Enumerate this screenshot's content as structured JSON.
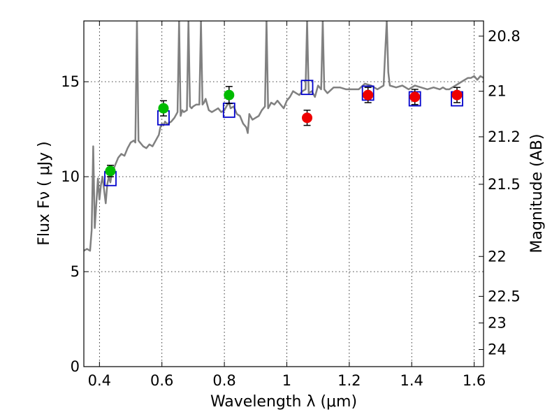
{
  "chart_data": {
    "type": "scatter",
    "title": "",
    "xlabel": "Wavelength  λ (μm)",
    "ylabel": "Flux  Fν  ( μJy )",
    "ylabel_right": "Magnitude (AB)",
    "xlim": [
      0.35,
      1.63
    ],
    "ylim": [
      0,
      18.2
    ],
    "grid": true,
    "x_ticks": [
      0.4,
      0.6,
      0.8,
      1.0,
      1.2,
      1.4,
      1.6
    ],
    "x_tick_labels": [
      "0.4",
      "0.6",
      "0.8",
      "1",
      "1.2",
      "1.4",
      "1.6"
    ],
    "y_ticks": [
      0,
      5,
      10,
      15
    ],
    "y_tick_labels": [
      "0",
      "5",
      "10",
      "15"
    ],
    "right_ticks": [
      {
        "label": "20.8",
        "flux": 17.4
      },
      {
        "label": "21",
        "flux": 14.5
      },
      {
        "label": "21.2",
        "flux": 12.1
      },
      {
        "label": "21.5",
        "flux": 9.6
      },
      {
        "label": "22",
        "flux": 5.8
      },
      {
        "label": "22.5",
        "flux": 3.7
      },
      {
        "label": "23",
        "flux": 2.3
      },
      {
        "label": "24",
        "flux": 0.9
      }
    ],
    "series": [
      {
        "name": "template_spectrum",
        "kind": "line",
        "color": "#808080",
        "x": [
          0.35,
          0.36,
          0.37,
          0.375,
          0.38,
          0.385,
          0.39,
          0.395,
          0.4,
          0.405,
          0.41,
          0.415,
          0.42,
          0.425,
          0.43,
          0.435,
          0.44,
          0.445,
          0.45,
          0.46,
          0.47,
          0.48,
          0.49,
          0.5,
          0.51,
          0.515,
          0.52,
          0.525,
          0.53,
          0.54,
          0.55,
          0.56,
          0.57,
          0.58,
          0.59,
          0.595,
          0.6,
          0.605,
          0.61,
          0.615,
          0.62,
          0.63,
          0.64,
          0.65,
          0.655,
          0.66,
          0.665,
          0.67,
          0.68,
          0.685,
          0.69,
          0.695,
          0.7,
          0.71,
          0.72,
          0.725,
          0.73,
          0.735,
          0.74,
          0.75,
          0.76,
          0.77,
          0.78,
          0.79,
          0.8,
          0.81,
          0.815,
          0.82,
          0.83,
          0.84,
          0.85,
          0.86,
          0.87,
          0.875,
          0.88,
          0.89,
          0.9,
          0.91,
          0.92,
          0.93,
          0.935,
          0.94,
          0.95,
          0.96,
          0.97,
          0.98,
          0.99,
          1.0,
          1.01,
          1.02,
          1.03,
          1.04,
          1.05,
          1.06,
          1.065,
          1.07,
          1.08,
          1.09,
          1.1,
          1.11,
          1.115,
          1.12,
          1.13,
          1.15,
          1.17,
          1.19,
          1.21,
          1.23,
          1.25,
          1.27,
          1.29,
          1.3,
          1.31,
          1.315,
          1.32,
          1.325,
          1.33,
          1.35,
          1.37,
          1.39,
          1.41,
          1.43,
          1.45,
          1.47,
          1.49,
          1.5,
          1.51,
          1.52,
          1.54,
          1.56,
          1.58,
          1.59,
          1.6,
          1.61,
          1.62,
          1.63
        ],
        "y": [
          6.1,
          6.2,
          6.1,
          7.2,
          11.6,
          7.3,
          8.6,
          9.9,
          8.8,
          9.6,
          10.0,
          9.3,
          8.6,
          9.6,
          10.0,
          9.7,
          10.2,
          10.4,
          10.6,
          11.0,
          11.2,
          11.1,
          11.5,
          11.8,
          11.9,
          11.8,
          18.2,
          11.9,
          11.8,
          11.6,
          11.5,
          11.7,
          11.6,
          11.9,
          12.2,
          12.6,
          12.8,
          12.7,
          12.9,
          12.8,
          12.8,
          12.9,
          13.1,
          13.4,
          18.2,
          13.2,
          13.5,
          13.4,
          13.5,
          18.2,
          13.7,
          13.6,
          13.7,
          13.8,
          13.8,
          18.2,
          13.8,
          13.9,
          14.1,
          13.5,
          13.4,
          13.5,
          13.6,
          13.4,
          13.5,
          13.8,
          13.9,
          13.6,
          13.7,
          13.3,
          13.2,
          12.8,
          12.6,
          12.3,
          13.3,
          13.0,
          13.1,
          13.2,
          13.5,
          13.7,
          18.2,
          13.6,
          13.9,
          13.8,
          14.0,
          13.8,
          13.6,
          14.0,
          14.2,
          14.5,
          14.4,
          14.3,
          14.5,
          14.6,
          18.2,
          14.4,
          14.5,
          14.2,
          14.8,
          14.6,
          18.2,
          14.6,
          14.4,
          14.7,
          14.7,
          14.6,
          14.6,
          14.6,
          14.9,
          14.8,
          14.6,
          14.7,
          14.8,
          16.5,
          18.2,
          15.5,
          14.8,
          14.7,
          14.8,
          14.6,
          14.8,
          14.7,
          14.6,
          14.7,
          14.6,
          14.7,
          14.6,
          14.6,
          14.8,
          15.0,
          15.2,
          15.2,
          15.3,
          15.1,
          15.3,
          15.2
        ]
      },
      {
        "name": "model_photometry",
        "kind": "square",
        "color": "#0000cc",
        "x": [
          0.435,
          0.605,
          0.815,
          1.065,
          1.26,
          1.41,
          1.545
        ],
        "y": [
          9.9,
          13.1,
          13.5,
          14.7,
          14.4,
          14.1,
          14.1
        ]
      },
      {
        "name": "observed_optical",
        "kind": "circle",
        "color": "#00bb00",
        "x": [
          0.435,
          0.605,
          0.815
        ],
        "y": [
          10.3,
          13.6,
          14.3
        ],
        "yerr": [
          0.3,
          0.4,
          0.45
        ]
      },
      {
        "name": "observed_nir",
        "kind": "circle",
        "color": "#ee0000",
        "x": [
          1.065,
          1.26,
          1.41,
          1.545
        ],
        "y": [
          13.1,
          14.3,
          14.2,
          14.3
        ],
        "yerr": [
          0.4,
          0.4,
          0.4,
          0.4
        ]
      }
    ]
  }
}
